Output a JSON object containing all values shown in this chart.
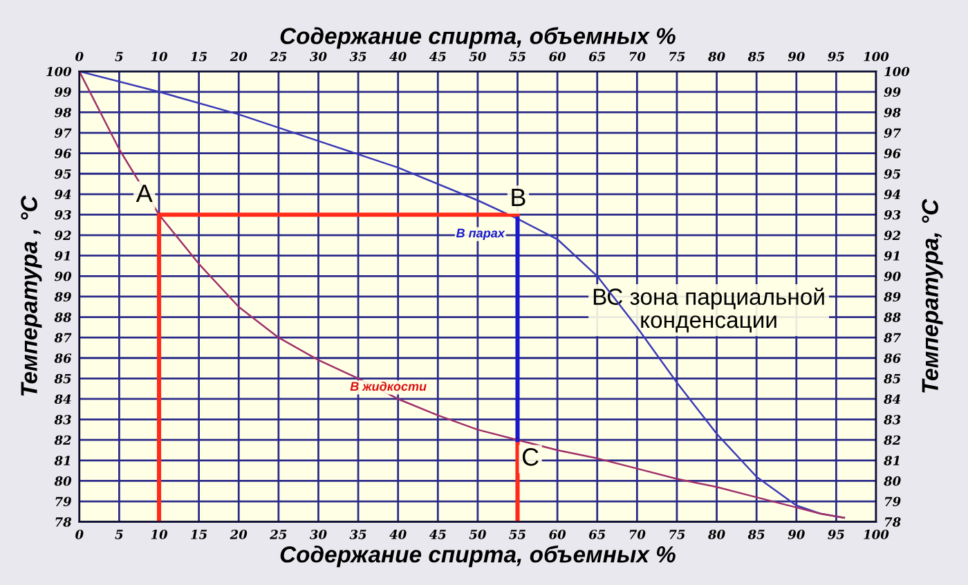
{
  "chart_data": {
    "type": "line",
    "xlabel": "Содержание спирта, объемных %",
    "x2label": "Содержание спирта, объемных %",
    "ylabel": "Температура , °С",
    "y2label": "Температура, °С",
    "xlim": [
      0,
      100
    ],
    "xticks": [
      0,
      5,
      10,
      15,
      20,
      25,
      30,
      35,
      40,
      45,
      50,
      55,
      60,
      65,
      70,
      75,
      80,
      85,
      90,
      95,
      100
    ],
    "x2lim": [
      0,
      100
    ],
    "x2ticks": [
      0,
      5,
      10,
      15,
      20,
      25,
      30,
      35,
      40,
      45,
      50,
      55,
      60,
      65,
      70,
      75,
      80,
      85,
      90,
      95,
      100
    ],
    "ylim": [
      78,
      100
    ],
    "yticks": [
      78,
      79,
      80,
      81,
      82,
      83,
      84,
      85,
      86,
      87,
      88,
      89,
      90,
      91,
      92,
      93,
      94,
      95,
      96,
      97,
      98,
      99,
      100
    ],
    "y2lim": [
      78,
      100
    ],
    "y2ticks": [
      78,
      79,
      80,
      81,
      82,
      83,
      84,
      85,
      86,
      87,
      88,
      89,
      90,
      91,
      92,
      93,
      94,
      95,
      96,
      97,
      98,
      99,
      100
    ],
    "grid": true,
    "marker": "none",
    "line_style": "solid",
    "series": [
      {
        "color": "#3a3ab8",
        "x": [
          0,
          10,
          20,
          30,
          40,
          50,
          55,
          60,
          65,
          70,
          75,
          80,
          85,
          90,
          93,
          96
        ],
        "values": [
          100,
          99,
          97.9,
          96.6,
          95.3,
          93.7,
          92.8,
          91.8,
          90,
          87.5,
          84.8,
          82.3,
          80.2,
          78.8,
          78.4,
          78.2
        ]
      },
      {
        "color": "#a0306a",
        "x": [
          0,
          5,
          10,
          15,
          20,
          25,
          30,
          35,
          40,
          45,
          50,
          55,
          60,
          65,
          70,
          75,
          80,
          85,
          90,
          93,
          96
        ],
        "values": [
          100,
          96.2,
          93,
          90.6,
          88.5,
          87,
          85.9,
          85,
          84,
          83.2,
          82.5,
          82,
          81.5,
          81.1,
          80.6,
          80.1,
          79.7,
          79.2,
          78.7,
          78.4,
          78.2
        ]
      },
      {
        "color": "#ff2a1a",
        "x": [
          10,
          10,
          55
        ],
        "values": [
          78,
          93,
          93
        ]
      },
      {
        "color": "#ff2a1a",
        "x": [
          55,
          55
        ],
        "values": [
          78,
          82
        ]
      },
      {
        "color": "#1a1acc",
        "x": [
          55,
          55
        ],
        "values": [
          92.8,
          82
        ]
      }
    ],
    "annotations": [
      {
        "text": "A",
        "x": 10,
        "y": 93
      },
      {
        "text": "B",
        "x": 55,
        "y": 92.8
      },
      {
        "text": "C",
        "x": 55,
        "y": 82
      },
      {
        "text": "В парах",
        "x": 55,
        "y": 92.8
      },
      {
        "text": "В жидкости",
        "x": 40,
        "y": 84
      },
      "ВС зона парциальной конденсации"
    ]
  }
}
